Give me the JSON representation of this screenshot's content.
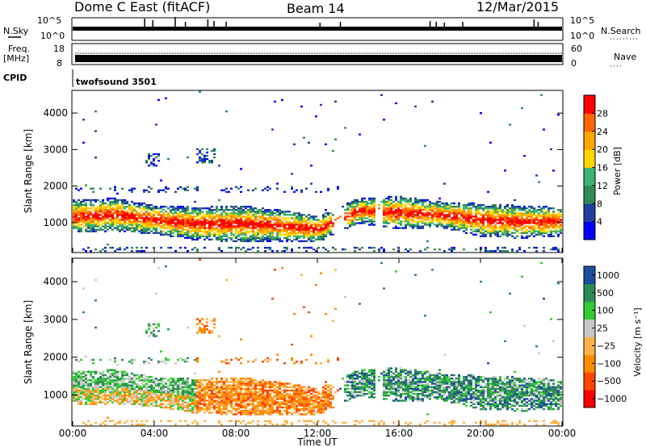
{
  "header": {
    "radar": "Dome C East (fitACF)",
    "beam": "Beam 14",
    "date": "12/Mar/2015"
  },
  "top_panels": {
    "nsky_label": "N.Sky",
    "nsky_ticks": [
      "10^5",
      "10^0"
    ],
    "nsearch_label": "N.Search",
    "nsearch_ticks": [
      "10^5",
      "10^0"
    ],
    "freq_label_1": "Freq.",
    "freq_label_2": "[MHz]",
    "freq_ticks": [
      "18",
      "8"
    ],
    "nave_label": "Nave",
    "nave_ticks": [
      "60",
      "0"
    ],
    "cpid_label": "CPID",
    "cpid_value": "twofsound 3501"
  },
  "colors": {
    "power_scale": [
      "#0000ff",
      "#1f3f9f",
      "#2e8b57",
      "#3cb371",
      "#ffd700",
      "#ffa500",
      "#ff6600",
      "#ff0000"
    ],
    "velocity_scale": [
      "#ff0000",
      "#ff4500",
      "#ff8c00",
      "#ffb347",
      "#c8c8c8",
      "#33cc33",
      "#2e8b57",
      "#1e4d9e"
    ]
  },
  "chart_data": [
    {
      "type": "heatmap",
      "panel": "power",
      "ylabel": "Slant Range [km]",
      "xlabel": "",
      "yticks": [
        "1000",
        "2000",
        "3000",
        "4000"
      ],
      "ylim": [
        200,
        4600
      ],
      "xlim": [
        "00:00",
        "24:00"
      ],
      "colorbar": {
        "label": "Power [dB]",
        "ticks": [
          "4",
          "8",
          "12",
          "16",
          "20",
          "24",
          "28"
        ],
        "range": [
          0,
          32
        ]
      },
      "band_centers_km": [
        {
          "t": 0,
          "center": 1150,
          "width": 900
        },
        {
          "t": 2,
          "center": 1200,
          "width": 900
        },
        {
          "t": 4,
          "center": 1050,
          "width": 800
        },
        {
          "t": 6,
          "center": 950,
          "width": 900
        },
        {
          "t": 8,
          "center": 950,
          "width": 1000
        },
        {
          "t": 10,
          "center": 900,
          "width": 900
        },
        {
          "t": 12,
          "center": 800,
          "width": 700
        },
        {
          "t": 14,
          "center": 1300,
          "width": 700
        },
        {
          "t": 16,
          "center": 1250,
          "width": 900
        },
        {
          "t": 18,
          "center": 1200,
          "width": 700
        },
        {
          "t": 20,
          "center": 1050,
          "width": 900
        },
        {
          "t": 22,
          "center": 1000,
          "width": 900
        },
        {
          "t": 24,
          "center": 1000,
          "width": 800
        }
      ]
    },
    {
      "type": "heatmap",
      "panel": "velocity",
      "ylabel": "Slant Range [km]",
      "xlabel": "Time UT",
      "yticks": [
        "1000",
        "2000",
        "3000",
        "4000"
      ],
      "xticks": [
        "00:00",
        "04:00",
        "08:00",
        "12:00",
        "16:00",
        "20:00",
        "00:00"
      ],
      "ylim": [
        200,
        4600
      ],
      "xlim": [
        "00:00",
        "24:00"
      ],
      "colorbar": {
        "label": "Velocity [m s⁻¹]",
        "ticks": [
          "1000",
          "500",
          "100",
          "25",
          "−25",
          "−100",
          "−500",
          "−1000"
        ]
      }
    }
  ]
}
